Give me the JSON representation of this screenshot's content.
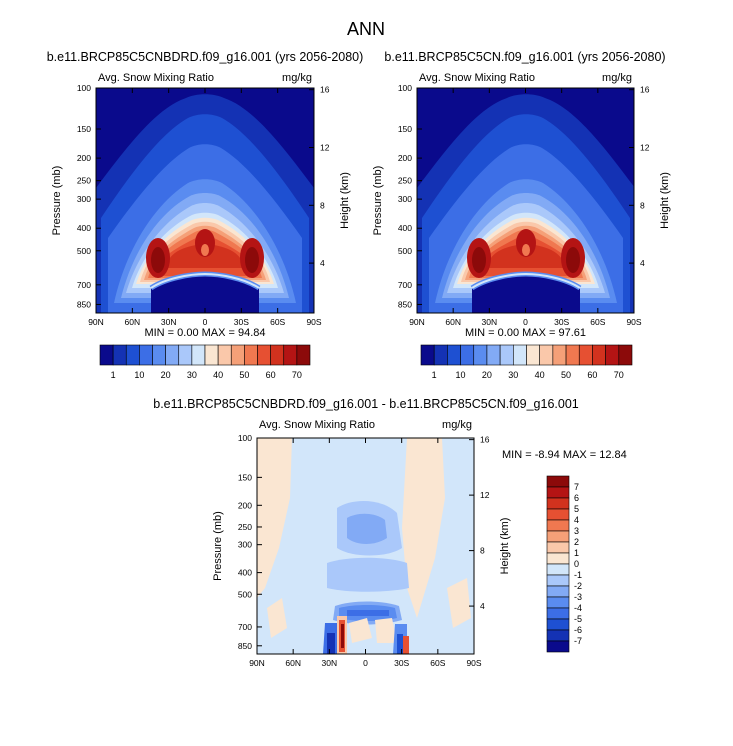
{
  "figure_title": "ANN",
  "chart_data": [
    {
      "type": "heatmap",
      "title": "b.e11.BRCP85C5CNBDRD.f09_g16.001 (yrs 2056-2080)",
      "left_label": "Avg. Snow Mixing Ratio",
      "right_label": "mg/kg",
      "xlabel": "",
      "ylabel": "Pressure (mb)",
      "ylabel_right": "Height (km)",
      "x_ticks": [
        "90N",
        "60N",
        "30N",
        "0",
        "30S",
        "60S",
        "90S"
      ],
      "y_ticks": [
        "100",
        "150",
        "200",
        "250",
        "300",
        "400",
        "500",
        "700",
        "850"
      ],
      "y_ticks_right": [
        "16",
        "12",
        "8",
        "4"
      ],
      "stats": "MIN =   0.00  MAX = 94.84",
      "colorbar_labels": [
        "1",
        "10",
        "20",
        "30",
        "40",
        "50",
        "60",
        "70"
      ],
      "colorbar_colors": [
        "#0a0a8c",
        "#1432b4",
        "#1e50d2",
        "#3c6ee6",
        "#5a8cf0",
        "#82aaf5",
        "#aac8fa",
        "#d2e6fa",
        "#fae6d2",
        "#fac8aa",
        "#f5a078",
        "#f07850",
        "#e65032",
        "#d2321e",
        "#b41414",
        "#8c0a0a"
      ],
      "peak_value": 94.84
    },
    {
      "type": "heatmap",
      "title": "b.e11.BRCP85C5CN.f09_g16.001 (yrs 2056-2080)",
      "left_label": "Avg. Snow Mixing Ratio",
      "right_label": "mg/kg",
      "xlabel": "",
      "ylabel": "Pressure (mb)",
      "ylabel_right": "Height (km)",
      "x_ticks": [
        "90N",
        "60N",
        "30N",
        "0",
        "30S",
        "60S",
        "90S"
      ],
      "y_ticks": [
        "100",
        "150",
        "200",
        "250",
        "300",
        "400",
        "500",
        "700",
        "850"
      ],
      "y_ticks_right": [
        "16",
        "12",
        "8",
        "4"
      ],
      "stats": "MIN =   0.00  MAX = 97.61",
      "colorbar_labels": [
        "1",
        "10",
        "20",
        "30",
        "40",
        "50",
        "60",
        "70"
      ],
      "colorbar_colors": [
        "#0a0a8c",
        "#1432b4",
        "#1e50d2",
        "#3c6ee6",
        "#5a8cf0",
        "#82aaf5",
        "#aac8fa",
        "#d2e6fa",
        "#fae6d2",
        "#fac8aa",
        "#f5a078",
        "#f07850",
        "#e65032",
        "#d2321e",
        "#b41414",
        "#8c0a0a"
      ],
      "peak_value": 97.61
    },
    {
      "type": "heatmap",
      "title": "b.e11.BRCP85C5CNBDRD.f09_g16.001 - b.e11.BRCP85C5CN.f09_g16.001",
      "left_label": "Avg. Snow Mixing Ratio",
      "right_label": "mg/kg",
      "xlabel": "",
      "ylabel": "Pressure (mb)",
      "ylabel_right": "Height (km)",
      "x_ticks": [
        "90N",
        "60N",
        "30N",
        "0",
        "30S",
        "60S",
        "90S"
      ],
      "y_ticks": [
        "100",
        "150",
        "200",
        "250",
        "300",
        "400",
        "500",
        "700",
        "850"
      ],
      "y_ticks_right": [
        "16",
        "12",
        "8",
        "4"
      ],
      "stats": "MIN = -8.94  MAX = 12.84",
      "colorbar_labels": [
        "7",
        "6",
        "5",
        "4",
        "3",
        "2",
        "1",
        "0",
        "-1",
        "-2",
        "-3",
        "-4",
        "-5",
        "-6",
        "-7"
      ],
      "colorbar_colors": [
        "#8c0a0a",
        "#b41414",
        "#d2321e",
        "#e65032",
        "#f07850",
        "#f5a078",
        "#fac8aa",
        "#fae6d2",
        "#d2e6fa",
        "#aac8fa",
        "#82aaf5",
        "#5a8cf0",
        "#3c6ee6",
        "#1e50d2",
        "#1432b4",
        "#0a0a8c"
      ],
      "min_value": -8.94,
      "max_value": 12.84
    }
  ]
}
